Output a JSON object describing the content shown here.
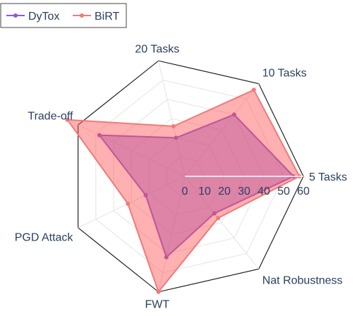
{
  "chart_data": {
    "type": "radar",
    "axes": [
      "5 Tasks",
      "10 Tasks",
      "20 Tasks",
      "Trade-off",
      "PGD Attack",
      "FWT",
      "Nat Robustness"
    ],
    "radial_ticks": [
      "0",
      "10",
      "20",
      "30",
      "40",
      "50",
      "60"
    ],
    "radial_range": [
      0,
      60
    ],
    "legend_position": "top-left",
    "series": [
      {
        "name": "DyTox",
        "color": "#8c5ad6",
        "fill": "rgba(120,80,220,0.45)",
        "values": [
          55,
          40,
          20,
          48,
          22,
          42,
          24
        ]
      },
      {
        "name": "BiRT",
        "color": "#f07a7a",
        "fill": "rgba(255,80,80,0.45)",
        "values": [
          58,
          56,
          26,
          66,
          32,
          60,
          27
        ]
      }
    ]
  }
}
